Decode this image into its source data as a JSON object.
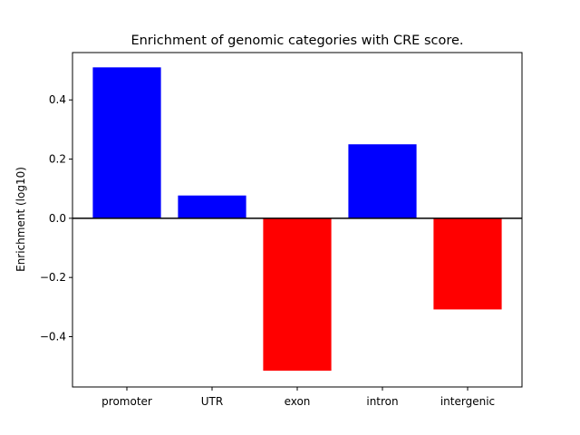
{
  "chart_data": {
    "type": "bar",
    "title": "Enrichment of genomic categories with CRE score.",
    "xlabel": "",
    "ylabel": "Enrichment (log10)",
    "categories": [
      "promoter",
      "UTR",
      "exon",
      "intron",
      "intergenic"
    ],
    "values": [
      0.51,
      0.077,
      -0.515,
      0.25,
      -0.308
    ],
    "ylim": [
      -0.57,
      0.56
    ],
    "yticks": [
      -0.4,
      -0.2,
      0.0,
      0.2,
      0.4
    ],
    "ytick_labels": [
      "−0.4",
      "−0.2",
      "0.0",
      "0.2",
      "0.4"
    ],
    "positive_color": "#0000ff",
    "negative_color": "#ff0000",
    "zero_line": true,
    "grid": false
  }
}
